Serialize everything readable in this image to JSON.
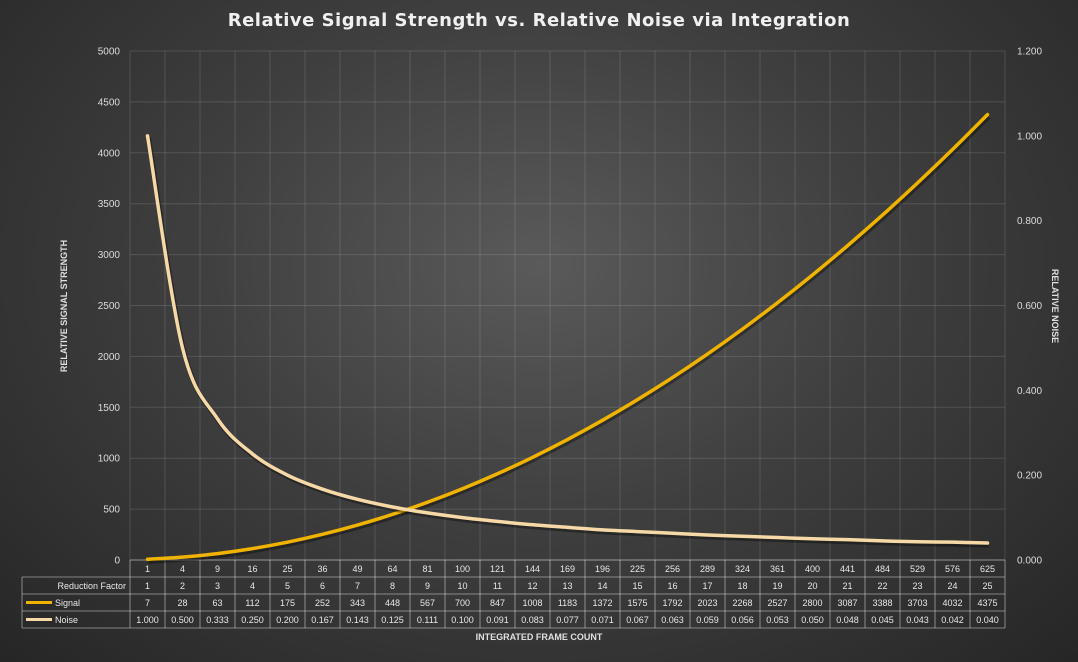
{
  "chart_data": {
    "type": "line",
    "title": "Relative Signal Strength vs. Relative Noise via Integration",
    "xlabel": "INTEGRATED FRAME COUNT",
    "ylabel": "RELATIVE SIGNAL STRENGTH",
    "y2label": "RELATIVE NOISE",
    "ylim": [
      0,
      5000
    ],
    "y2lim": [
      0,
      1.2
    ],
    "yticks": [
      "0",
      "500",
      "1000",
      "1500",
      "2000",
      "2500",
      "3000",
      "3500",
      "4000",
      "4500",
      "5000"
    ],
    "y2ticks": [
      "0.000",
      "0.200",
      "0.400",
      "0.600",
      "0.800",
      "1.000",
      "1.200"
    ],
    "grid": true,
    "categories": [
      "1",
      "4",
      "9",
      "16",
      "25",
      "36",
      "49",
      "64",
      "81",
      "100",
      "121",
      "144",
      "169",
      "196",
      "225",
      "256",
      "289",
      "324",
      "361",
      "400",
      "441",
      "484",
      "529",
      "576",
      "625"
    ],
    "table_rows": [
      {
        "label": "Reduction Factor",
        "values": [
          "1",
          "2",
          "3",
          "4",
          "5",
          "6",
          "7",
          "8",
          "9",
          "10",
          "11",
          "12",
          "13",
          "14",
          "15",
          "16",
          "17",
          "18",
          "19",
          "20",
          "21",
          "22",
          "23",
          "24",
          "25"
        ]
      },
      {
        "label": "Signal",
        "color": "#f0b400",
        "values": [
          "7",
          "28",
          "63",
          "112",
          "175",
          "252",
          "343",
          "448",
          "567",
          "700",
          "847",
          "1008",
          "1183",
          "1372",
          "1575",
          "1792",
          "2023",
          "2268",
          "2527",
          "2800",
          "3087",
          "3388",
          "3703",
          "4032",
          "4375"
        ]
      },
      {
        "label": "Noise",
        "color": "#f7d9a8",
        "values": [
          "1.000",
          "0.500",
          "0.333",
          "0.250",
          "0.200",
          "0.167",
          "0.143",
          "0.125",
          "0.111",
          "0.100",
          "0.091",
          "0.083",
          "0.077",
          "0.071",
          "0.067",
          "0.063",
          "0.059",
          "0.056",
          "0.053",
          "0.050",
          "0.048",
          "0.045",
          "0.043",
          "0.042",
          "0.040"
        ]
      }
    ],
    "series": [
      {
        "name": "Signal",
        "axis": "left",
        "color": "#f0b400",
        "values": [
          7,
          28,
          63,
          112,
          175,
          252,
          343,
          448,
          567,
          700,
          847,
          1008,
          1183,
          1372,
          1575,
          1792,
          2023,
          2268,
          2527,
          2800,
          3087,
          3388,
          3703,
          4032,
          4375
        ]
      },
      {
        "name": "Noise",
        "axis": "right",
        "color": "#f7d9a8",
        "values": [
          1.0,
          0.5,
          0.333,
          0.25,
          0.2,
          0.167,
          0.143,
          0.125,
          0.111,
          0.1,
          0.091,
          0.083,
          0.077,
          0.071,
          0.067,
          0.063,
          0.059,
          0.056,
          0.053,
          0.05,
          0.048,
          0.045,
          0.043,
          0.042,
          0.04
        ]
      }
    ]
  }
}
